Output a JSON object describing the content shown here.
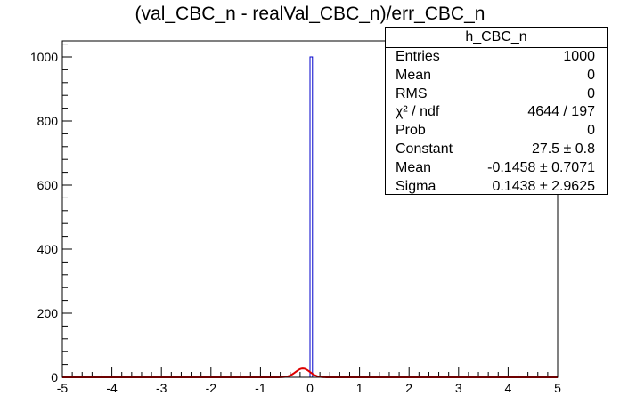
{
  "chart_data": {
    "type": "histogram",
    "title": "(val_CBC_n - realVal_CBC_n)/err_CBC_n",
    "xlim": [
      -5,
      5
    ],
    "ylim": [
      0,
      1050
    ],
    "x_ticks": [
      "-5",
      "-4",
      "-3",
      "-2",
      "-1",
      "0",
      "1",
      "2",
      "3",
      "4",
      "5"
    ],
    "y_ticks": [
      "0",
      "200",
      "400",
      "600",
      "800",
      "1000"
    ],
    "bins": 200,
    "bars": [
      {
        "x_low": 0.0,
        "x_high": 0.05,
        "value": 1000
      }
    ],
    "fit": {
      "function": "gaus",
      "constant": 27.5,
      "mean": -0.1458,
      "sigma": 0.1438
    },
    "colors": {
      "histogram": "#0000cc",
      "fit": "#dd0000",
      "axis": "#000000"
    },
    "stats_box": {
      "name": "h_CBC_n",
      "rows": [
        {
          "label": "Entries",
          "value": "1000"
        },
        {
          "label": "Mean",
          "value": "0"
        },
        {
          "label": "RMS",
          "value": "0"
        },
        {
          "label": "χ² / ndf",
          "value": "4644 / 197"
        },
        {
          "label": "Prob",
          "value": "0"
        },
        {
          "label": "Constant",
          "value": "27.5 ± 0.8"
        },
        {
          "label": "Mean",
          "value": "-0.1458 ± 0.7071"
        },
        {
          "label": "Sigma",
          "value": "0.1438 ± 2.9625"
        }
      ]
    }
  }
}
